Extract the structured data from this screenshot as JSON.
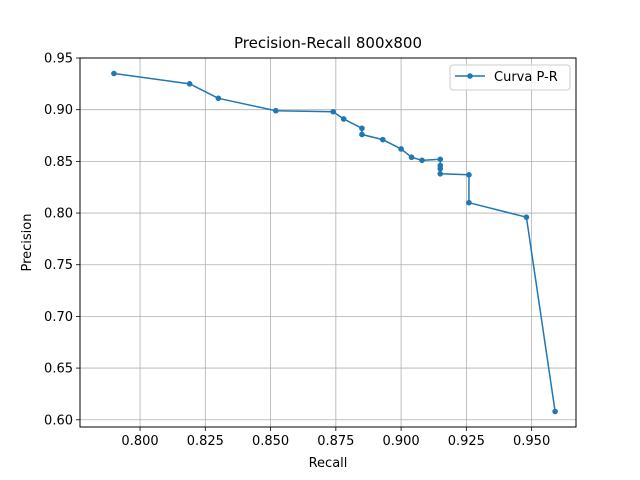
{
  "chart_data": {
    "type": "line",
    "title": "Precision-Recall 800x800",
    "xlabel": "Recall",
    "ylabel": "Precision",
    "xlim": [
      0.777,
      0.967
    ],
    "ylim": [
      0.593,
      0.95
    ],
    "xticks": [
      0.8,
      0.825,
      0.85,
      0.875,
      0.9,
      0.925,
      0.95
    ],
    "xtick_labels": [
      "0.800",
      "0.825",
      "0.850",
      "0.875",
      "0.900",
      "0.925",
      "0.950"
    ],
    "yticks": [
      0.6,
      0.65,
      0.7,
      0.75,
      0.8,
      0.85,
      0.9,
      0.95
    ],
    "ytick_labels": [
      "0.60",
      "0.65",
      "0.70",
      "0.75",
      "0.80",
      "0.85",
      "0.90",
      "0.95"
    ],
    "grid": true,
    "legend_position": "top-right",
    "series": [
      {
        "name": "Curva P-R",
        "color": "#1f77b4",
        "marker": "circle",
        "x": [
          0.79,
          0.819,
          0.83,
          0.852,
          0.874,
          0.878,
          0.885,
          0.885,
          0.893,
          0.9,
          0.904,
          0.908,
          0.915,
          0.915,
          0.915,
          0.915,
          0.926,
          0.926,
          0.948,
          0.959
        ],
        "y": [
          0.935,
          0.925,
          0.911,
          0.899,
          0.898,
          0.891,
          0.882,
          0.876,
          0.871,
          0.862,
          0.854,
          0.851,
          0.852,
          0.846,
          0.843,
          0.838,
          0.837,
          0.81,
          0.796,
          0.608
        ]
      }
    ]
  }
}
